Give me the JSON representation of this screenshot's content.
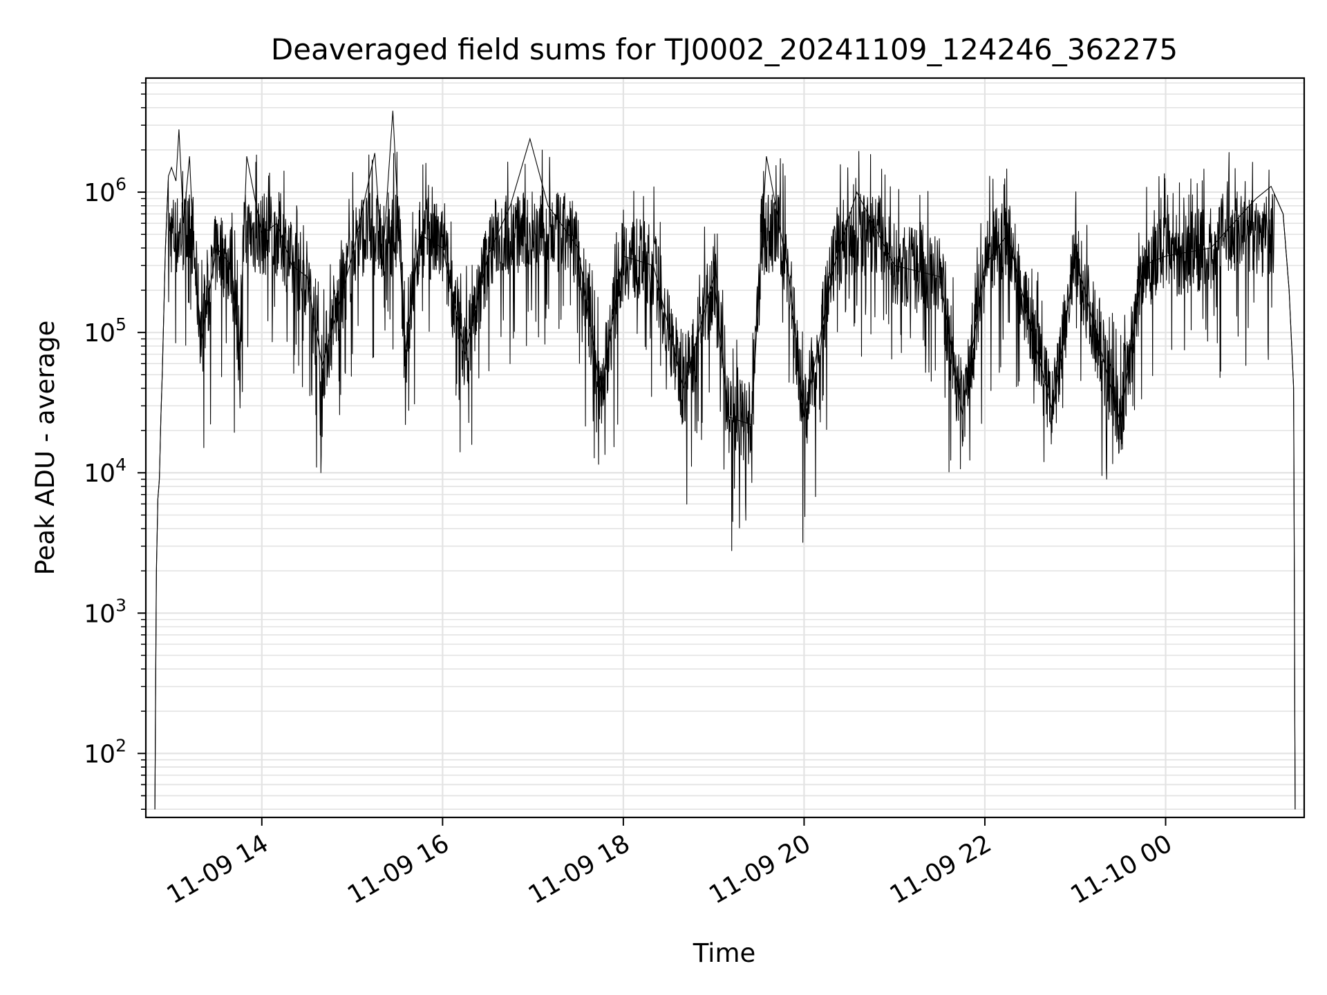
{
  "chart_data": {
    "type": "line",
    "title": "Deaveraged field sums for TJ0002_20241109_124246_362275",
    "xlabel": "Time",
    "ylabel": "Peak ADU - average",
    "yscale": "log",
    "grid": true,
    "x_tick_labels": [
      "11-09 14",
      "11-09 16",
      "11-09 18",
      "11-09 20",
      "11-09 22",
      "11-10 00"
    ],
    "x_ticks": [
      "2024-11-09 14:00",
      "2024-11-09 16:00",
      "2024-11-09 18:00",
      "2024-11-09 20:00",
      "2024-11-09 22:00",
      "2024-11-10 00:00"
    ],
    "xlim": [
      "2024-11-09 12:43",
      "2024-11-10 01:32"
    ],
    "y_tick_labels": [
      {
        "base": "10",
        "exp": "2",
        "value": 100
      },
      {
        "base": "10",
        "exp": "3",
        "value": 1000
      },
      {
        "base": "10",
        "exp": "4",
        "value": 10000
      },
      {
        "base": "10",
        "exp": "5",
        "value": 100000
      },
      {
        "base": "10",
        "exp": "6",
        "value": 1000000
      }
    ],
    "ylim": [
      35,
      6500000
    ],
    "line_color": "#000000",
    "series": [
      {
        "points": [
          [
            "2024-11-09 12:49",
            40
          ],
          [
            "2024-11-09 12:50",
            2000
          ],
          [
            "2024-11-09 12:51",
            6500
          ],
          [
            "2024-11-09 12:52",
            9000
          ],
          [
            "2024-11-09 12:53",
            25000
          ],
          [
            "2024-11-09 12:54",
            55000
          ],
          [
            "2024-11-09 12:56",
            400000
          ],
          [
            "2024-11-09 12:58",
            1300000
          ],
          [
            "2024-11-09 13:00",
            1500000
          ],
          [
            "2024-11-09 13:03",
            1200000
          ],
          [
            "2024-11-09 13:05",
            2800000
          ],
          [
            "2024-11-09 13:08",
            600000
          ],
          [
            "2024-11-09 13:12",
            1800000
          ],
          [
            "2024-11-09 13:15",
            350000
          ],
          [
            "2024-11-09 13:20",
            90000
          ],
          [
            "2024-11-09 13:30",
            400000
          ],
          [
            "2024-11-09 13:40",
            300000
          ],
          [
            "2024-11-09 13:45",
            65000
          ],
          [
            "2024-11-09 13:50",
            1800000
          ],
          [
            "2024-11-09 14:00",
            500000
          ],
          [
            "2024-11-09 14:10",
            600000
          ],
          [
            "2024-11-09 14:20",
            300000
          ],
          [
            "2024-11-09 14:30",
            250000
          ],
          [
            "2024-11-09 14:40",
            58000
          ],
          [
            "2024-11-09 15:00",
            350000
          ],
          [
            "2024-11-09 15:15",
            1900000
          ],
          [
            "2024-11-09 15:20",
            300000
          ],
          [
            "2024-11-09 15:27",
            3800000
          ],
          [
            "2024-11-09 15:35",
            70000
          ],
          [
            "2024-11-09 15:45",
            500000
          ],
          [
            "2024-11-09 16:00",
            400000
          ],
          [
            "2024-11-09 16:15",
            70000
          ],
          [
            "2024-11-09 16:30",
            350000
          ],
          [
            "2024-11-09 16:45",
            800000
          ],
          [
            "2024-11-09 16:58",
            2400000
          ],
          [
            "2024-11-09 17:10",
            800000
          ],
          [
            "2024-11-09 17:30",
            400000
          ],
          [
            "2024-11-09 17:45",
            38000
          ],
          [
            "2024-11-09 18:00",
            350000
          ],
          [
            "2024-11-09 18:20",
            300000
          ],
          [
            "2024-11-09 18:40",
            40000
          ],
          [
            "2024-11-09 19:00",
            250000
          ],
          [
            "2024-11-09 19:10",
            25000
          ],
          [
            "2024-11-09 19:25",
            22000
          ],
          [
            "2024-11-09 19:35",
            1800000
          ],
          [
            "2024-11-09 19:50",
            250000
          ],
          [
            "2024-11-09 20:00",
            25000
          ],
          [
            "2024-11-09 20:20",
            300000
          ],
          [
            "2024-11-09 20:35",
            1000000
          ],
          [
            "2024-11-09 21:00",
            300000
          ],
          [
            "2024-11-09 21:30",
            250000
          ],
          [
            "2024-11-09 21:45",
            26000
          ],
          [
            "2024-11-09 22:00",
            300000
          ],
          [
            "2024-11-09 22:15",
            500000
          ],
          [
            "2024-11-09 22:45",
            27000
          ],
          [
            "2024-11-09 23:00",
            350000
          ],
          [
            "2024-11-09 23:30",
            23000
          ],
          [
            "2024-11-09 23:45",
            300000
          ],
          [
            "2024-11-10 00:00",
            350000
          ],
          [
            "2024-11-10 00:30",
            400000
          ],
          [
            "2024-11-10 00:45",
            600000
          ],
          [
            "2024-11-10 01:00",
            900000
          ],
          [
            "2024-11-10 01:10",
            1100000
          ],
          [
            "2024-11-10 01:18",
            700000
          ],
          [
            "2024-11-10 01:22",
            200000
          ],
          [
            "2024-11-10 01:25",
            40000
          ],
          [
            "2024-11-10 01:26",
            40
          ]
        ]
      }
    ]
  }
}
